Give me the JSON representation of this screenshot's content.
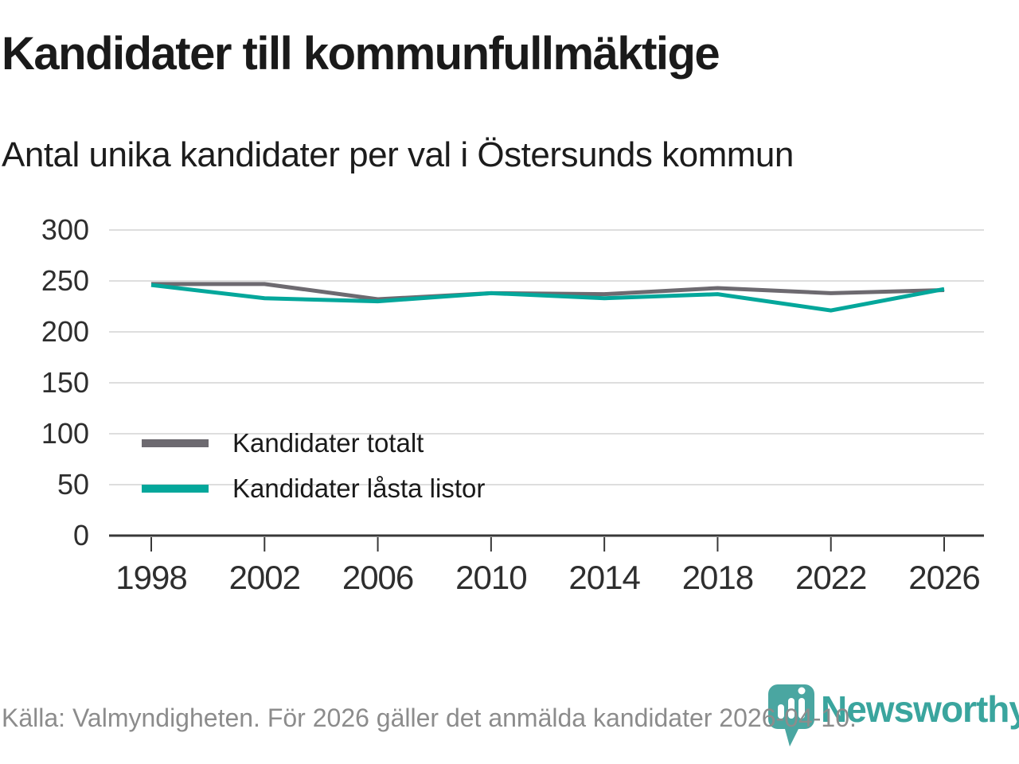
{
  "header": {
    "title": "Kandidater till kommunfullmäktige",
    "subtitle": "Antal unika kandidater per val i Östersunds kommun"
  },
  "chart_data": {
    "type": "line",
    "title": "Kandidater till kommunfullmäktige",
    "subtitle": "Antal unika kandidater per val i Östersunds kommun",
    "categories": [
      "1998",
      "2002",
      "2006",
      "2010",
      "2014",
      "2018",
      "2022",
      "2026"
    ],
    "series": [
      {
        "name": "Kandidater totalt",
        "color": "#6d6a70",
        "values": [
          247,
          247,
          232,
          238,
          237,
          243,
          238,
          241
        ]
      },
      {
        "name": "Kandidater låsta listor",
        "color": "#04a79b",
        "values": [
          246,
          233,
          230,
          238,
          233,
          237,
          221,
          242
        ]
      }
    ],
    "xlabel": "",
    "ylabel": "",
    "ylim": [
      0,
      300
    ],
    "yticks": [
      0,
      50,
      100,
      150,
      200,
      250,
      300
    ],
    "grid": "horizontal",
    "legend_position": "inside-bottom-left",
    "colors": {
      "gridline": "#dedede",
      "axis": "#383838",
      "tick_label": "#2e2e2e"
    }
  },
  "footer": {
    "source": "Källa: Valmyndigheten. För 2026 gäller det anmälda kandidater 2026-04-10.",
    "brand": "Newsworthy",
    "colors": {
      "pin": "#4aa6a1",
      "brand_text": "#3aa59e"
    }
  }
}
